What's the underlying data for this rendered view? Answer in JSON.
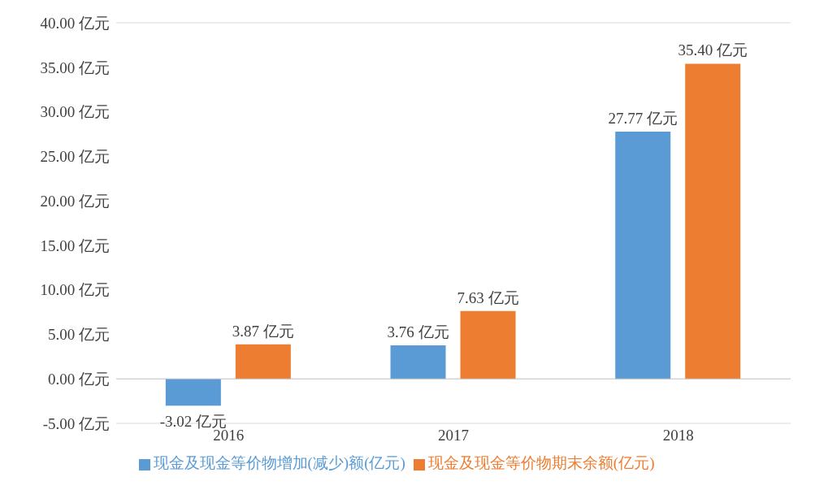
{
  "chart_data": {
    "type": "bar",
    "categories": [
      "2016",
      "2017",
      "2018"
    ],
    "series": [
      {
        "name": "现金及现金等价物增加(减少)额(亿元)",
        "color": "#5b9bd5",
        "values": [
          -3.02,
          3.76,
          27.77
        ],
        "value_labels": [
          "-3.02 亿元",
          "3.76 亿元",
          "27.77 亿元"
        ]
      },
      {
        "name": "现金及现金等价物期末余额(亿元)",
        "color": "#ed7d31",
        "values": [
          3.87,
          7.63,
          35.4
        ],
        "value_labels": [
          "3.87 亿元",
          "7.63 亿元",
          "35.40 亿元"
        ]
      }
    ],
    "ylim": [
      -5,
      40
    ],
    "yticks": [
      {
        "value": -5,
        "label": "-5.00 亿元"
      },
      {
        "value": 0,
        "label": "0.00 亿元"
      },
      {
        "value": 5,
        "label": "5.00 亿元"
      },
      {
        "value": 10,
        "label": "10.00 亿元"
      },
      {
        "value": 15,
        "label": "15.00 亿元"
      },
      {
        "value": 20,
        "label": "20.00 亿元"
      },
      {
        "value": 25,
        "label": "25.00 亿元"
      },
      {
        "value": 30,
        "label": "30.00 亿元"
      },
      {
        "value": 35,
        "label": "35.00 亿元"
      },
      {
        "value": 40,
        "label": "40.00 亿元"
      }
    ],
    "grid": "y",
    "legend": "bottom"
  }
}
